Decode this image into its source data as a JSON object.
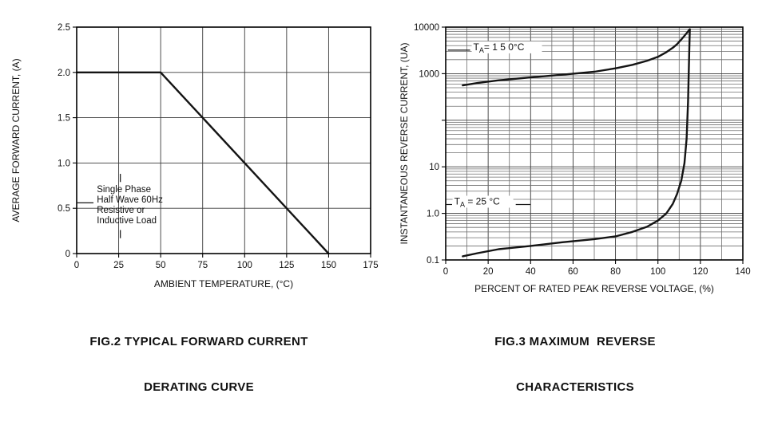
{
  "page": {
    "background": "#ffffff",
    "ink": "#111111"
  },
  "chart_data": [
    {
      "type": "line",
      "title": "FIG.2 TYPICAL FORWARD CURRENT DERATING CURVE",
      "caption_lines": [
        "FIG.2 TYPICAL FORWARD CURRENT",
        "DERATING CURVE"
      ],
      "xlabel": "AMBIENT TEMPERATURE, (°C)",
      "ylabel": "AVERAGE FORWARD CURRENT, (A)",
      "yscale": "linear",
      "grid": true,
      "xlim": [
        0,
        175
      ],
      "ylim": [
        0,
        2.5
      ],
      "xticks": [
        0,
        25,
        50,
        75,
        100,
        125,
        150,
        175
      ],
      "xtick_labels": [
        "0",
        "25",
        "50",
        "75",
        "100",
        "125",
        "150",
        "175"
      ],
      "xgrid_step": 25,
      "yticks": [
        0,
        0.5,
        1.0,
        1.5,
        2.0,
        2.5
      ],
      "ytick_labels": [
        "0",
        "0.5",
        "1.0",
        "1.5",
        "2.0",
        "2.5"
      ],
      "series": [
        {
          "name": "forward-current-derating",
          "points": [
            [
              0,
              2.0
            ],
            [
              50,
              2.0
            ],
            [
              150,
              0
            ]
          ]
        }
      ],
      "annotation": {
        "lines": [
          "Single Phase",
          "Half Wave 60Hz",
          "Resistive or",
          "Inductive Load"
        ],
        "x": 12,
        "y": 0.68,
        "marks": [
          [
            0,
            0.56,
            10,
            0.56
          ],
          [
            26,
            0.88,
            26,
            0.79
          ],
          [
            26,
            0.26,
            26,
            0.17
          ]
        ]
      }
    },
    {
      "type": "line",
      "title": "FIG.3 MAXIMUM REVERSE CHARACTERISTICS",
      "caption_lines": [
        "FIG.3 MAXIMUM  REVERSE",
        "CHARACTERISTICS"
      ],
      "xlabel": "PERCENT OF RATED PEAK REVERSE VOLTAGE, (%)",
      "ylabel": "INSTANTANEOUS REVERSE CURRENT, (UA)",
      "yscale": "log",
      "grid": true,
      "xlim": [
        0,
        140
      ],
      "ylim": [
        0.1,
        10000
      ],
      "xticks": [
        0,
        20,
        40,
        60,
        80,
        100,
        120,
        140
      ],
      "xtick_labels": [
        "0",
        "20",
        "40",
        "60",
        "80",
        "100",
        "120",
        "140"
      ],
      "xgrid_step": 10,
      "yticks": [
        0.1,
        1.0,
        10,
        100,
        1000,
        10000
      ],
      "ytick_labels": [
        "0.1",
        "1.0",
        "10",
        "",
        "1000",
        "10000"
      ],
      "series": [
        {
          "name": "reverse-current-ta-150c",
          "points": [
            [
              8,
              560
            ],
            [
              15,
              630
            ],
            [
              25,
              720
            ],
            [
              40,
              830
            ],
            [
              55,
              950
            ],
            [
              70,
              1100
            ],
            [
              80,
              1300
            ],
            [
              88,
              1550
            ],
            [
              95,
              1900
            ],
            [
              100,
              2300
            ],
            [
              104,
              2900
            ],
            [
              107,
              3600
            ],
            [
              109,
              4300
            ],
            [
              111,
              5400
            ],
            [
              112.5,
              6500
            ],
            [
              113.5,
              7400
            ],
            [
              114.3,
              8200
            ],
            [
              115,
              9000
            ]
          ]
        },
        {
          "name": "reverse-current-ta-25c",
          "points": [
            [
              8,
              0.12
            ],
            [
              15,
              0.14
            ],
            [
              25,
              0.17
            ],
            [
              40,
              0.2
            ],
            [
              55,
              0.24
            ],
            [
              70,
              0.28
            ],
            [
              80,
              0.32
            ],
            [
              88,
              0.4
            ],
            [
              95,
              0.52
            ],
            [
              100,
              0.7
            ],
            [
              104,
              1.0
            ],
            [
              107,
              1.6
            ],
            [
              109,
              2.6
            ],
            [
              111,
              5
            ],
            [
              112.5,
              12
            ],
            [
              113.5,
              40
            ],
            [
              114.2,
              250
            ],
            [
              114.7,
              2500
            ],
            [
              115,
              9000
            ]
          ]
        }
      ],
      "curve_labels": [
        {
          "pre": "T",
          "sub": "A",
          "post": "= 1 5 0°C",
          "x": 13,
          "y": 3200,
          "bg_w": 88,
          "bg_h": 15,
          "leaders": [
            [
              1,
              3200,
              11.5,
              3200
            ]
          ]
        },
        {
          "pre": "T",
          "sub": "A",
          "post": " = 25 °C",
          "x": 4,
          "y": 1.55,
          "bg_w": 76,
          "bg_h": 15,
          "leaders": [
            [
              0,
              1.55,
              3,
              1.55
            ],
            [
              33,
              1.55,
              40,
              1.55
            ]
          ]
        }
      ]
    }
  ]
}
